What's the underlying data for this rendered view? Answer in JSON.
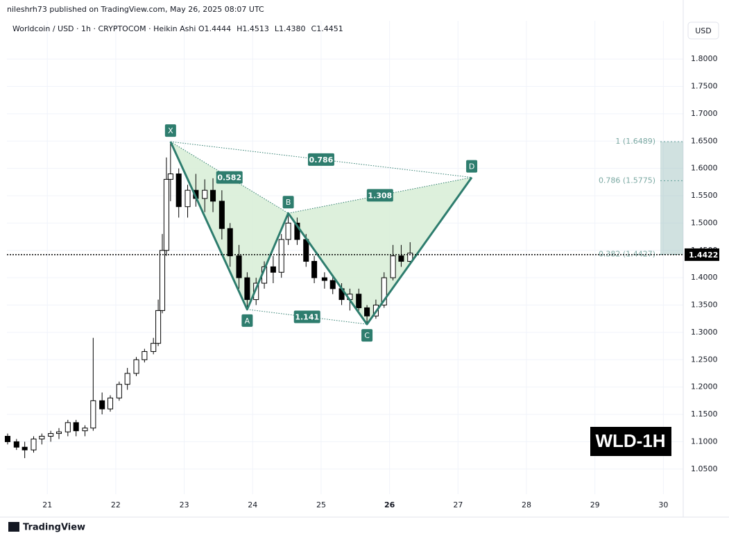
{
  "chart_data": {
    "type": "candlestick",
    "published": "nileshrh73 published on TradingView.com, May 26, 2025 08:07 UTC",
    "title": "Worldcoin / USD · 1h · CRYPTOCOM · Heikin Ashi",
    "ohlc_legend": [
      "O1.4444",
      "H1.4513",
      "L1.4380",
      "C1.4451"
    ],
    "currency": "USD",
    "badge": "WLD-1H",
    "brand": "TradingView",
    "xlim": [
      20.41,
      30.29
    ],
    "xticks": [
      21,
      22,
      23,
      24,
      25,
      26,
      27,
      28,
      29,
      30
    ],
    "ylim": [
      1.004,
      1.87
    ],
    "yticks": [
      {
        "value": 1.05,
        "label": "1.0500"
      },
      {
        "value": 1.1,
        "label": "1.1000"
      },
      {
        "value": 1.15,
        "label": "1.1500"
      },
      {
        "value": 1.2,
        "label": "1.2000"
      },
      {
        "value": 1.25,
        "label": "1.2500"
      },
      {
        "value": 1.3,
        "label": "1.3000"
      },
      {
        "value": 1.35,
        "label": "1.3500"
      },
      {
        "value": 1.4,
        "label": "1.4000"
      },
      {
        "value": 1.45,
        "label": "1.4500"
      },
      {
        "value": 1.5,
        "label": "1.5000"
      },
      {
        "value": 1.55,
        "label": "1.5500"
      },
      {
        "value": 1.6,
        "label": "1.6000"
      },
      {
        "value": 1.65,
        "label": "1.6500"
      },
      {
        "value": 1.7,
        "label": "1.7000"
      },
      {
        "value": 1.75,
        "label": "1.7500"
      },
      {
        "value": 1.8,
        "label": "1.8000"
      }
    ],
    "grid": true,
    "up_color": "#ffffff",
    "down_color": "#000000",
    "candles": {
      "x": [
        20.42,
        20.55,
        20.67,
        20.8,
        20.92,
        21.05,
        21.17,
        21.3,
        21.42,
        21.55,
        21.67,
        21.8,
        21.92,
        22.05,
        22.17,
        22.3,
        22.42,
        22.55,
        22.62,
        22.68,
        22.74,
        22.8,
        22.92,
        23.05,
        23.17,
        23.3,
        23.42,
        23.55,
        23.67,
        23.8,
        23.92,
        24.05,
        24.17,
        24.3,
        24.42,
        24.52,
        24.65,
        24.78,
        24.9,
        25.05,
        25.17,
        25.3,
        25.42,
        25.55,
        25.67,
        25.8,
        25.92,
        26.05,
        26.17,
        26.3
      ],
      "ohlc": [
        [
          1.11,
          1.115,
          1.095,
          1.1
        ],
        [
          1.1,
          1.105,
          1.085,
          1.09
        ],
        [
          1.09,
          1.1,
          1.07,
          1.085
        ],
        [
          1.085,
          1.11,
          1.08,
          1.105
        ],
        [
          1.105,
          1.115,
          1.095,
          1.11
        ],
        [
          1.11,
          1.12,
          1.1,
          1.115
        ],
        [
          1.115,
          1.125,
          1.105,
          1.118
        ],
        [
          1.118,
          1.14,
          1.11,
          1.135
        ],
        [
          1.135,
          1.14,
          1.11,
          1.12
        ],
        [
          1.12,
          1.13,
          1.11,
          1.125
        ],
        [
          1.125,
          1.29,
          1.12,
          1.175
        ],
        [
          1.175,
          1.19,
          1.15,
          1.16
        ],
        [
          1.16,
          1.185,
          1.155,
          1.18
        ],
        [
          1.18,
          1.21,
          1.175,
          1.205
        ],
        [
          1.205,
          1.235,
          1.195,
          1.225
        ],
        [
          1.225,
          1.255,
          1.22,
          1.25
        ],
        [
          1.25,
          1.27,
          1.245,
          1.265
        ],
        [
          1.265,
          1.29,
          1.26,
          1.28
        ],
        [
          1.28,
          1.36,
          1.275,
          1.34
        ],
        [
          1.34,
          1.48,
          1.335,
          1.45
        ],
        [
          1.45,
          1.62,
          1.44,
          1.58
        ],
        [
          1.58,
          1.649,
          1.54,
          1.59
        ],
        [
          1.59,
          1.6,
          1.51,
          1.53
        ],
        [
          1.53,
          1.57,
          1.51,
          1.56
        ],
        [
          1.56,
          1.59,
          1.53,
          1.545
        ],
        [
          1.545,
          1.58,
          1.52,
          1.56
        ],
        [
          1.56,
          1.582,
          1.52,
          1.54
        ],
        [
          1.54,
          1.56,
          1.47,
          1.49
        ],
        [
          1.49,
          1.5,
          1.42,
          1.44
        ],
        [
          1.44,
          1.46,
          1.38,
          1.4
        ],
        [
          1.4,
          1.41,
          1.342,
          1.36
        ],
        [
          1.36,
          1.4,
          1.35,
          1.39
        ],
        [
          1.39,
          1.43,
          1.38,
          1.42
        ],
        [
          1.42,
          1.44,
          1.39,
          1.41
        ],
        [
          1.41,
          1.48,
          1.4,
          1.47
        ],
        [
          1.47,
          1.518,
          1.46,
          1.5
        ],
        [
          1.5,
          1.51,
          1.46,
          1.47
        ],
        [
          1.47,
          1.48,
          1.42,
          1.43
        ],
        [
          1.43,
          1.44,
          1.39,
          1.4
        ],
        [
          1.4,
          1.41,
          1.38,
          1.395
        ],
        [
          1.395,
          1.405,
          1.37,
          1.38
        ],
        [
          1.38,
          1.39,
          1.35,
          1.36
        ],
        [
          1.36,
          1.38,
          1.34,
          1.37
        ],
        [
          1.37,
          1.38,
          1.34,
          1.345
        ],
        [
          1.345,
          1.35,
          1.315,
          1.33
        ],
        [
          1.33,
          1.36,
          1.325,
          1.35
        ],
        [
          1.35,
          1.41,
          1.345,
          1.4
        ],
        [
          1.4,
          1.46,
          1.395,
          1.44
        ],
        [
          1.44,
          1.46,
          1.42,
          1.43
        ],
        [
          1.43,
          1.465,
          1.425,
          1.445
        ]
      ]
    },
    "last_price": 1.4422,
    "pattern": {
      "color": "#2e7d6e",
      "fill": "#d7edd6",
      "points": [
        {
          "label": "X",
          "x": 22.8,
          "y": 1.6489
        },
        {
          "label": "A",
          "x": 23.92,
          "y": 1.342
        },
        {
          "label": "B",
          "x": 24.52,
          "y": 1.518
        },
        {
          "label": "C",
          "x": 25.67,
          "y": 1.315
        },
        {
          "label": "D",
          "x": 27.2,
          "y": 1.5835
        }
      ],
      "ratios": [
        {
          "from": 0,
          "to": 2,
          "value": 0.582
        },
        {
          "from": 0,
          "to": 4,
          "value": 0.786
        },
        {
          "from": 1,
          "to": 3,
          "value": 1.141
        },
        {
          "from": 2,
          "to": 4,
          "value": 1.308
        }
      ]
    },
    "fib_levels": [
      {
        "value": 1.6489,
        "label": "1 (1.6489)"
      },
      {
        "value": 1.5775,
        "label": "0.786 (1.5775)"
      },
      {
        "value": 1.4427,
        "label": "0.382 (1.4427)"
      }
    ]
  }
}
